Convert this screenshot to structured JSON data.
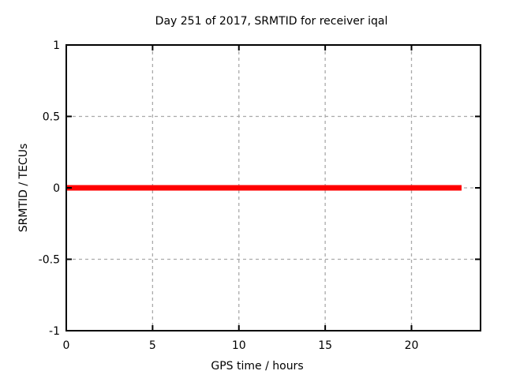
{
  "page": {
    "background": "#ffffff",
    "frame_color": "#000000",
    "text_color": "#000000"
  },
  "chart_data": {
    "type": "line",
    "title": "Day 251 of 2017, SRMTID for receiver iqal",
    "xlabel": "GPS time / hours",
    "ylabel": "SRMTID / TECUs",
    "xlim": [
      0,
      24
    ],
    "ylim": [
      -1,
      1
    ],
    "xticks": [
      0,
      5,
      10,
      15,
      20
    ],
    "xtick_labels": [
      "0",
      "5",
      "10",
      "15",
      "20"
    ],
    "yticks": [
      -1,
      -0.5,
      0,
      0.5,
      1
    ],
    "ytick_labels": [
      "-1",
      "-0.5",
      "0",
      "0.5",
      "1"
    ],
    "grid": true,
    "grid_color": "#aaaaaa",
    "grid_style": "dashed",
    "legend": "none",
    "series": [
      {
        "name": "SRMTID",
        "color": "#ff0000",
        "line_width": 7,
        "points": [
          [
            0,
            0
          ],
          [
            22.9,
            0
          ]
        ]
      }
    ]
  }
}
